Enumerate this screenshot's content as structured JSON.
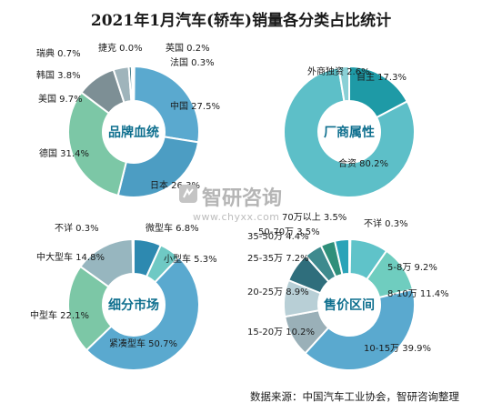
{
  "title": "2021年1月汽车(轿车)销量各分类占比统计",
  "watermark": {
    "name": "智研咨询",
    "url": "www.chyxx.com"
  },
  "source": "数据来源：中国汽车工业协会，智研咨询整理",
  "chart_data": [
    {
      "type": "pie",
      "title": "品牌血统",
      "slices": [
        {
          "label": "中国",
          "value": 27.5,
          "color": "#5aa9cf"
        },
        {
          "label": "日本",
          "value": 26.3,
          "color": "#4c9dc3"
        },
        {
          "label": "德国",
          "value": 31.4,
          "color": "#7cc7a6"
        },
        {
          "label": "美国",
          "value": 9.7,
          "color": "#7d8f95"
        },
        {
          "label": "韩国",
          "value": 3.8,
          "color": "#9fb4bb"
        },
        {
          "label": "瑞典",
          "value": 0.7,
          "color": "#2b6b7a"
        },
        {
          "label": "捷克",
          "value": 0.0,
          "color": "#3a8aa0"
        },
        {
          "label": "英国",
          "value": 0.2,
          "color": "#5bbec3"
        },
        {
          "label": "法国",
          "value": 0.3,
          "color": "#4fb7b6"
        }
      ]
    },
    {
      "type": "pie",
      "title": "厂商属性",
      "slices": [
        {
          "label": "自主",
          "value": 17.3,
          "color": "#1e9aa6"
        },
        {
          "label": "合资",
          "value": 80.2,
          "color": "#5dbfc8"
        },
        {
          "label": "外商独资",
          "value": 2.6,
          "color": "#8ad0d6"
        }
      ]
    },
    {
      "type": "pie",
      "title": "细分市场",
      "slices": [
        {
          "label": "微型车",
          "value": 6.8,
          "color": "#2d89b0"
        },
        {
          "label": "小型车",
          "value": 5.3,
          "color": "#6fc9c4"
        },
        {
          "label": "紧凑型车",
          "value": 50.7,
          "color": "#5aa9cf"
        },
        {
          "label": "中型车",
          "value": 22.1,
          "color": "#7cc7a6"
        },
        {
          "label": "中大型车",
          "value": 14.8,
          "color": "#97b6bf"
        },
        {
          "label": "不详",
          "value": 0.3,
          "color": "#3f9fb2"
        }
      ]
    },
    {
      "type": "pie",
      "title": "售价区间",
      "slices": [
        {
          "label": "不详",
          "value": 0.3,
          "color": "#2d89b0"
        },
        {
          "label": "5-8万",
          "value": 9.2,
          "color": "#5fc3c9"
        },
        {
          "label": "8-10万",
          "value": 11.4,
          "color": "#6fcdbf"
        },
        {
          "label": "10-15万",
          "value": 39.9,
          "color": "#5aa9cf"
        },
        {
          "label": "15-20万",
          "value": 10.2,
          "color": "#9ab0b8"
        },
        {
          "label": "20-25万",
          "value": 8.9,
          "color": "#b8cfd6"
        },
        {
          "label": "25-35万",
          "value": 7.2,
          "color": "#2f6e7c"
        },
        {
          "label": "35-50万",
          "value": 4.4,
          "color": "#3e8a8e"
        },
        {
          "label": "50-70万",
          "value": 3.5,
          "color": "#2f8f7a"
        },
        {
          "label": "70万以上",
          "value": 3.5,
          "color": "#2aa3b8"
        }
      ]
    }
  ]
}
